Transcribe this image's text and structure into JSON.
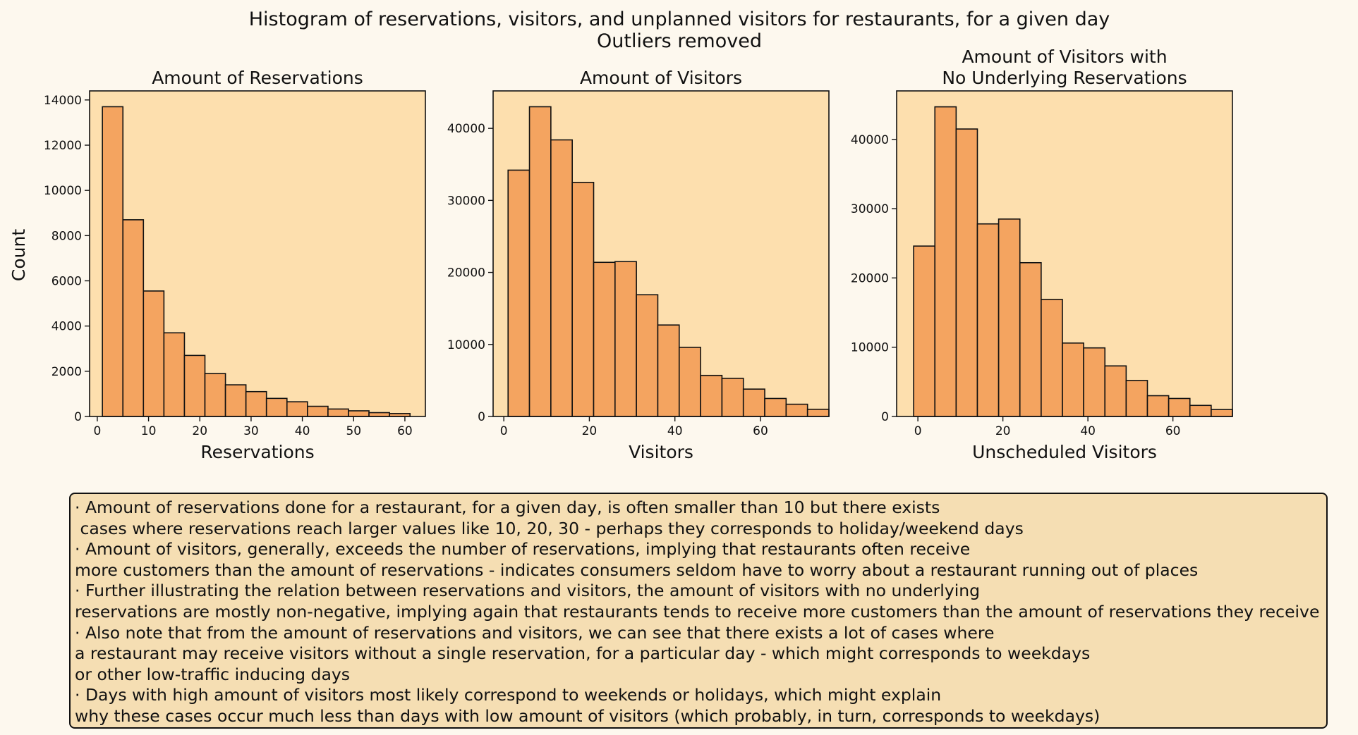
{
  "figure": {
    "suptitle_line1": "Histogram of reservations, visitors, and unplanned visitors for restaurants, for a given day",
    "suptitle_line2": "Outliers removed",
    "shared_ylabel": "Count",
    "colors": {
      "page": "#fdf8ee",
      "axes": "#fddfae",
      "bar": "#f4a460",
      "note_box": "#f5deb3"
    }
  },
  "chart_data": [
    {
      "type": "bar",
      "title_lines": [
        "Amount of Reservations"
      ],
      "xlabel": "Reservations",
      "ylabel": "Count",
      "bin_edges": [
        1,
        5,
        9,
        13,
        17,
        21,
        25,
        29,
        33,
        37,
        41,
        45,
        49,
        53,
        57,
        61
      ],
      "values": [
        13700,
        8700,
        5550,
        3700,
        2700,
        1900,
        1400,
        1100,
        800,
        650,
        450,
        330,
        250,
        170,
        130
      ],
      "xlim": [
        -1.5,
        64
      ],
      "ylim": [
        0,
        14400
      ],
      "xticks": [
        0,
        10,
        20,
        30,
        40,
        50,
        60
      ],
      "yticks": [
        0,
        2000,
        4000,
        6000,
        8000,
        10000,
        12000,
        14000
      ]
    },
    {
      "type": "bar",
      "title_lines": [
        "Amount of Visitors"
      ],
      "xlabel": "Visitors",
      "ylabel": "",
      "bin_edges": [
        1,
        6,
        11,
        16,
        21,
        26,
        31,
        36,
        41,
        46,
        51,
        56,
        61,
        66,
        71,
        76
      ],
      "values": [
        34200,
        43000,
        38400,
        32500,
        21400,
        21500,
        16900,
        12700,
        9600,
        5700,
        5300,
        3800,
        2500,
        1700,
        1000
      ],
      "xlim": [
        -2.5,
        76
      ],
      "ylim": [
        0,
        45200
      ],
      "xticks": [
        0,
        20,
        40,
        60
      ],
      "yticks": [
        0,
        10000,
        20000,
        30000,
        40000
      ]
    },
    {
      "type": "bar",
      "title_lines": [
        "Amount of Visitors with",
        "No Underlying Reservations"
      ],
      "xlabel": "Unscheduled Visitors",
      "ylabel": "",
      "bin_edges": [
        -1,
        4,
        9,
        14,
        19,
        24,
        29,
        34,
        39,
        44,
        49,
        54,
        59,
        64,
        69,
        74
      ],
      "values": [
        24600,
        44700,
        41500,
        27800,
        28500,
        22200,
        16900,
        10600,
        9900,
        7300,
        5200,
        3000,
        2600,
        1600,
        1000
      ],
      "xlim": [
        -5,
        74
      ],
      "ylim": [
        0,
        47000
      ],
      "xticks": [
        0,
        20,
        40,
        60
      ],
      "yticks": [
        0,
        10000,
        20000,
        30000,
        40000
      ]
    }
  ],
  "notes": [
    "· Amount of reservations done for a restaurant, for a given day, is often smaller than 10 but there exists",
    " cases where reservations reach larger values like 10, 20, 30 - perhaps they corresponds to holiday/weekend days",
    "· Amount of visitors, generally, exceeds the number of reservations, implying that restaurants often receive",
    "more customers than the amount of reservations - indicates consumers seldom have to worry about a restaurant running out of places",
    "· Further illustrating the relation between reservations and visitors, the amount of visitors with no underlying",
    "reservations are mostly non-negative, implying again that restaurants tends to receive more customers than the amount of reservations they receive",
    "· Also note that from the amount of reservations and visitors, we can see that there exists a lot of cases where",
    "a restaurant may receive visitors without a single reservation, for a particular day - which might corresponds to weekdays",
    "or other low-traffic inducing days",
    "· Days with high amount of visitors most likely correspond to weekends or holidays, which might explain",
    "why these cases occur much less than days with low amount of visitors (which probably, in turn, corresponds to weekdays)"
  ]
}
